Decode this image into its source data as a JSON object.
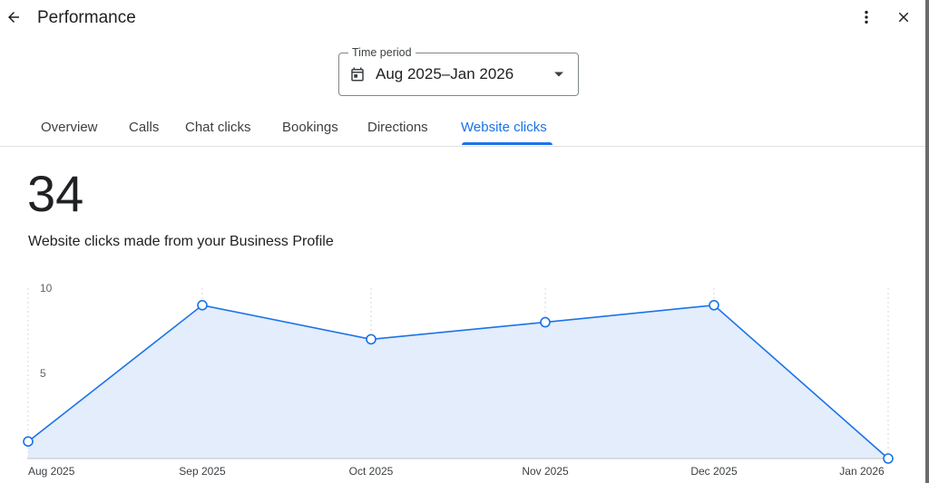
{
  "header": {
    "title": "Performance",
    "back_icon": "arrow-back-icon",
    "more_icon": "more-vert-icon",
    "close_icon": "close-icon"
  },
  "time_period": {
    "label": "Time period",
    "value": "Aug 2025–Jan 2026",
    "icon": "calendar-icon"
  },
  "tabs": [
    {
      "label": "Overview",
      "active": false
    },
    {
      "label": "Calls",
      "active": false
    },
    {
      "label": "Chat clicks",
      "active": false
    },
    {
      "label": "Bookings",
      "active": false
    },
    {
      "label": "Directions",
      "active": false
    },
    {
      "label": "Website clicks",
      "active": true
    }
  ],
  "summary": {
    "total": "34",
    "description": "Website clicks made from your Business Profile"
  },
  "colors": {
    "accent": "#1a73e8",
    "fill": "#e3edfc"
  },
  "chart_data": {
    "type": "area",
    "x": [
      "Aug 2025",
      "Sep 2025",
      "Oct 2025",
      "Nov 2025",
      "Dec 2025",
      "Jan 2026"
    ],
    "values": [
      1,
      9,
      7,
      8,
      9,
      0
    ],
    "yticks": [
      "5",
      "10"
    ],
    "ylim": [
      0,
      10
    ],
    "grid": "vertical-dotted"
  }
}
